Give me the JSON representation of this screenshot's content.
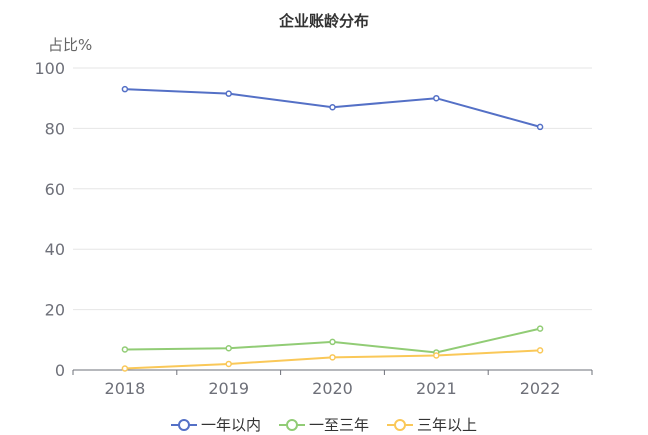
{
  "chart_data": {
    "type": "line",
    "title": "企业账龄分布",
    "ylabel": "占比%",
    "xlabel": "",
    "categories": [
      "2018",
      "2019",
      "2020",
      "2021",
      "2022"
    ],
    "ylim": [
      0,
      100
    ],
    "yticks": [
      0,
      20,
      40,
      60,
      80,
      100
    ],
    "grid": true,
    "legend_position": "bottom",
    "series": [
      {
        "name": "一年以内",
        "color": "#5470c6",
        "values": [
          93,
          91.5,
          87,
          90,
          80.5
        ]
      },
      {
        "name": "一至三年",
        "color": "#91cc75",
        "values": [
          6.8,
          7.2,
          9.3,
          5.8,
          13.7
        ]
      },
      {
        "name": "三年以上",
        "color": "#fac858",
        "values": [
          0.5,
          2,
          4.2,
          4.8,
          6.5
        ]
      }
    ]
  }
}
